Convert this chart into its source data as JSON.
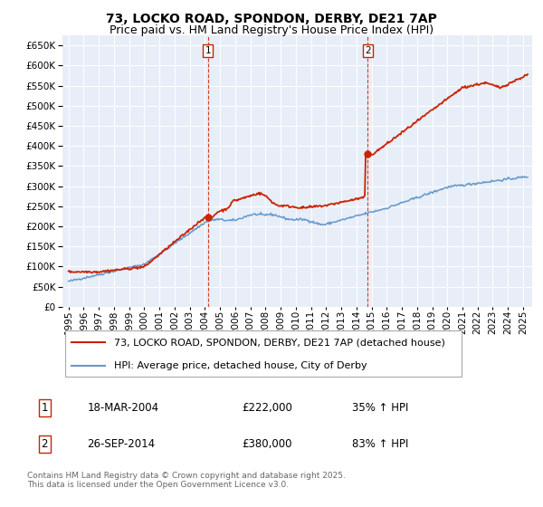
{
  "title": "73, LOCKO ROAD, SPONDON, DERBY, DE21 7AP",
  "subtitle": "Price paid vs. HM Land Registry's House Price Index (HPI)",
  "ylim": [
    0,
    675000
  ],
  "yticks": [
    0,
    50000,
    100000,
    150000,
    200000,
    250000,
    300000,
    350000,
    400000,
    450000,
    500000,
    550000,
    600000,
    650000
  ],
  "xlim_start": 1994.6,
  "xlim_end": 2025.6,
  "background_color": "#ffffff",
  "plot_bg_color": "#e8eef8",
  "grid_color": "#ffffff",
  "hpi_color": "#6699cc",
  "price_color": "#cc2200",
  "marker1_date": 2004.21,
  "marker1_price": 222000,
  "marker2_date": 2014.74,
  "marker2_price": 380000,
  "vline1_date": 2004.21,
  "vline2_date": 2014.74,
  "legend1_label": "73, LOCKO ROAD, SPONDON, DERBY, DE21 7AP (detached house)",
  "legend2_label": "HPI: Average price, detached house, City of Derby",
  "annotation1_num": "1",
  "annotation2_num": "2",
  "event1_date_str": "18-MAR-2004",
  "event1_price_str": "£222,000",
  "event1_hpi_str": "35% ↑ HPI",
  "event2_date_str": "26-SEP-2014",
  "event2_price_str": "£380,000",
  "event2_hpi_str": "83% ↑ HPI",
  "footer_text": "Contains HM Land Registry data © Crown copyright and database right 2025.\nThis data is licensed under the Open Government Licence v3.0.",
  "title_fontsize": 10,
  "subtitle_fontsize": 9,
  "tick_fontsize": 7.5,
  "legend_fontsize": 8,
  "table_fontsize": 8.5,
  "footer_fontsize": 6.5
}
